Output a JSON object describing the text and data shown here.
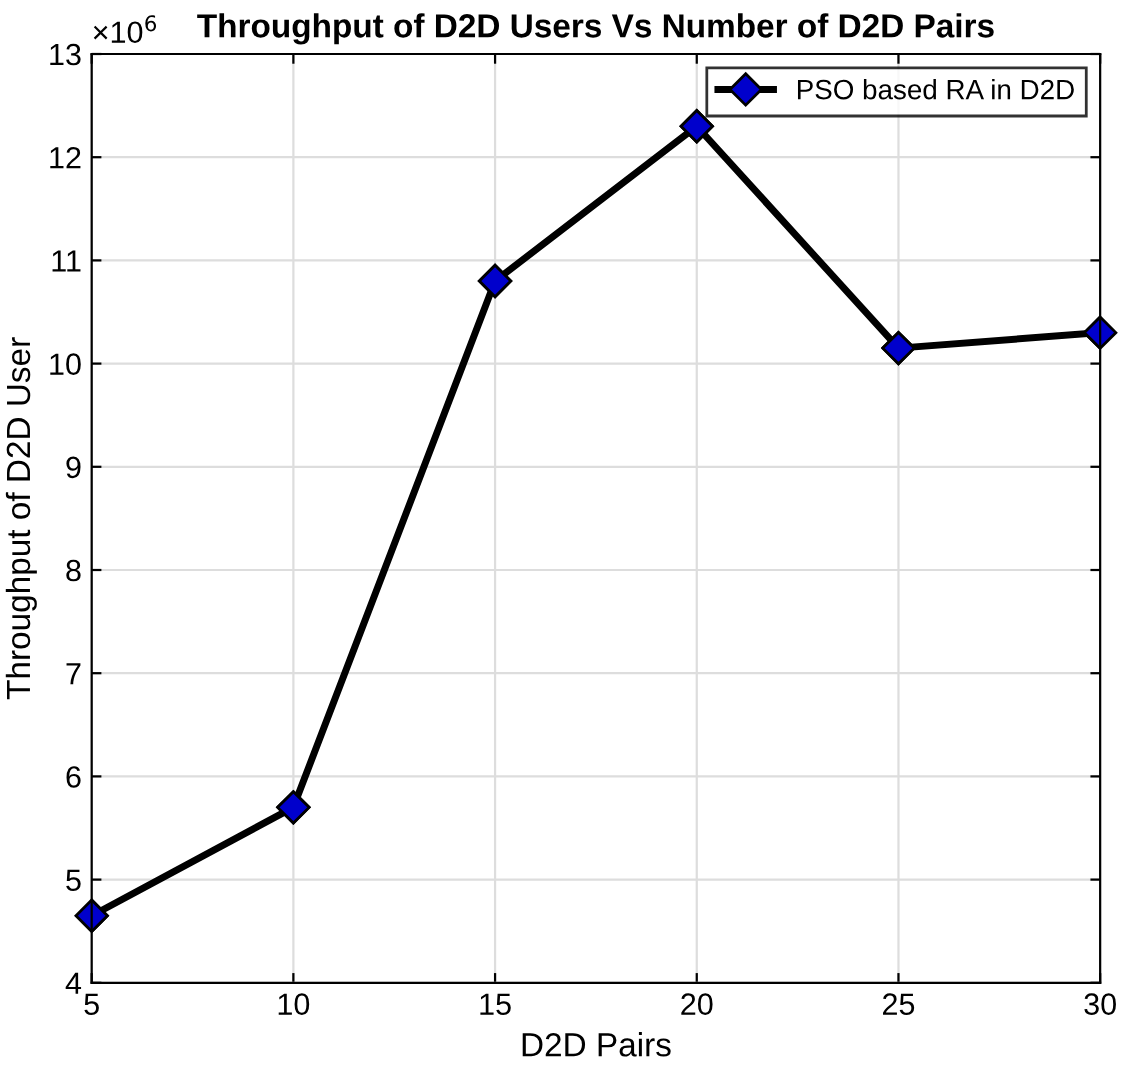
{
  "chart_data": {
    "type": "line",
    "title": "Throughput of D2D Users Vs Number of D2D Pairs",
    "xlabel": "D2D Pairs",
    "ylabel": "Throughput of D2D User",
    "x": [
      5,
      10,
      15,
      20,
      25,
      30
    ],
    "series": [
      {
        "name": "PSO based RA in D2D",
        "color": "#000000",
        "colors": [
          "#0000cc",
          "#0000cc",
          "#0000cc",
          "#0000cc",
          "#0000cc",
          "#0000cc"
        ],
        "values": [
          4.65,
          5.7,
          10.8,
          12.3,
          10.15,
          10.3
        ]
      }
    ],
    "xlim": [
      5,
      30
    ],
    "xticks": [
      5,
      10,
      15,
      20,
      25,
      30
    ],
    "ylim": [
      4,
      13
    ],
    "yticks": [
      4,
      5,
      6,
      7,
      8,
      9,
      10,
      11,
      12,
      13
    ],
    "annotations": [
      "×10$^{6}$"
    ],
    "grid": true,
    "legend": "top right",
    "marker": "diamond",
    "line_style": "solid"
  }
}
